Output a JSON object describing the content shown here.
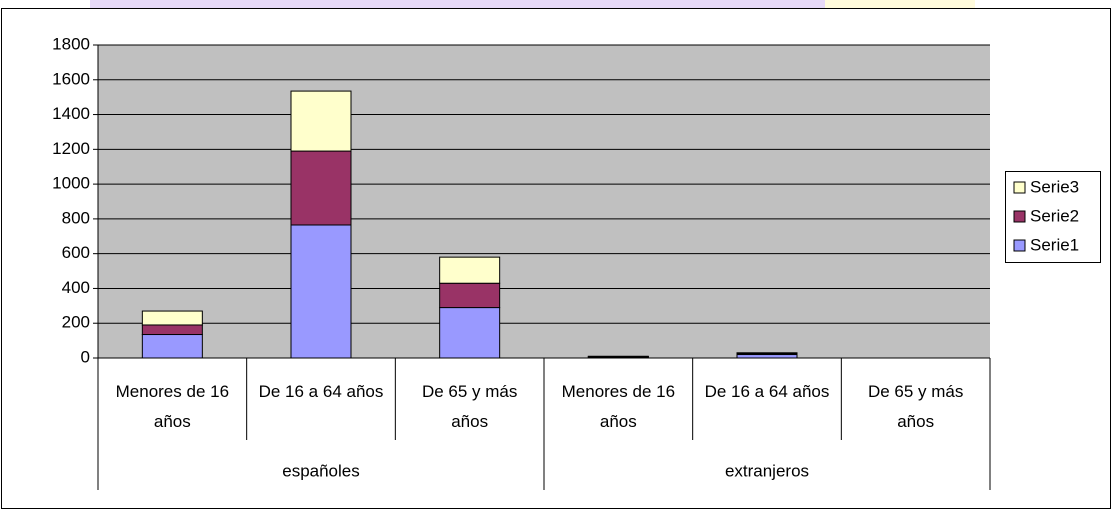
{
  "chart_data": {
    "type": "stacked_bar",
    "category_groups": [
      {
        "name": "españoles",
        "categories": [
          "Menores de 16 años",
          "De 16 a 64 años",
          "De 65 y más años"
        ]
      },
      {
        "name": "extranjeros",
        "categories": [
          "Menores de 16 años",
          "De 16 a 64 años",
          "De 65 y más años"
        ]
      }
    ],
    "series": [
      {
        "name": "Serie1",
        "color": "#9999ff",
        "values": [
          135,
          765,
          290,
          5,
          20,
          0
        ]
      },
      {
        "name": "Serie2",
        "color": "#993366",
        "values": [
          55,
          425,
          140,
          3,
          5,
          0
        ]
      },
      {
        "name": "Serie3",
        "color": "#ffffcc",
        "values": [
          80,
          345,
          150,
          2,
          5,
          0
        ]
      }
    ],
    "ylim": [
      0,
      1800
    ],
    "yticks": [
      0,
      200,
      400,
      600,
      800,
      1000,
      1200,
      1400,
      1600,
      1800
    ],
    "grid": true,
    "legend": "right"
  }
}
